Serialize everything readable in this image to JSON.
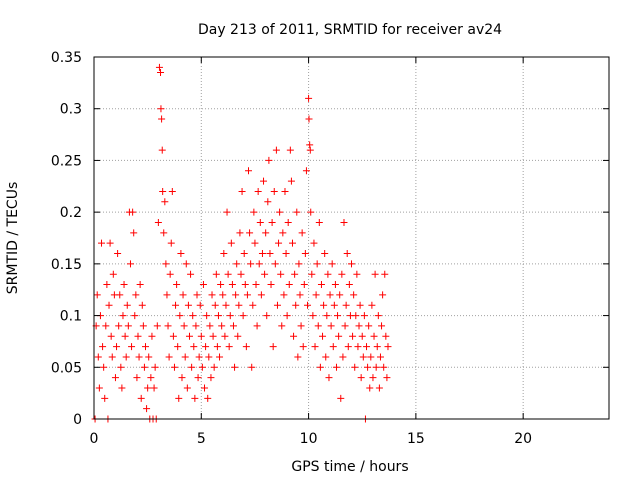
{
  "chart_data": {
    "type": "scatter",
    "title": "Day 213 of 2011, SRMTID for receiver av24",
    "xlabel": "GPS time / hours",
    "ylabel": "SRMTID / TECUs",
    "xlim": [
      0,
      24
    ],
    "ylim": [
      0,
      0.35
    ],
    "xticks": [
      0,
      5,
      10,
      15,
      20
    ],
    "yticks": [
      0,
      0.05,
      0.1,
      0.15,
      0.2,
      0.25,
      0.3,
      0.35
    ],
    "xtick_labels": [
      "0",
      "5",
      "10",
      "15",
      "20"
    ],
    "ytick_labels": [
      "0",
      "0.05",
      "0.1",
      "0.15",
      "0.2",
      "0.25",
      "0.3",
      "0.35"
    ],
    "grid": true,
    "marker": "+",
    "color": "#ff0000",
    "series": [
      {
        "name": "SRMTID av24",
        "points": [
          [
            0.05,
            0.0
          ],
          [
            0.1,
            0.09
          ],
          [
            0.15,
            0.12
          ],
          [
            0.2,
            0.06
          ],
          [
            0.25,
            0.03
          ],
          [
            0.3,
            0.1
          ],
          [
            0.35,
            0.17
          ],
          [
            0.4,
            0.07
          ],
          [
            0.45,
            0.05
          ],
          [
            0.5,
            0.02
          ],
          [
            0.55,
            0.09
          ],
          [
            0.6,
            0.13
          ],
          [
            0.65,
            0.0
          ],
          [
            0.7,
            0.11
          ],
          [
            0.75,
            0.17
          ],
          [
            0.8,
            0.08
          ],
          [
            0.85,
            0.06
          ],
          [
            0.9,
            0.14
          ],
          [
            0.95,
            0.12
          ],
          [
            1.0,
            0.04
          ],
          [
            1.05,
            0.07
          ],
          [
            1.1,
            0.16
          ],
          [
            1.15,
            0.09
          ],
          [
            1.2,
            0.12
          ],
          [
            1.25,
            0.05
          ],
          [
            1.3,
            0.03
          ],
          [
            1.35,
            0.1
          ],
          [
            1.4,
            0.13
          ],
          [
            1.45,
            0.08
          ],
          [
            1.5,
            0.06
          ],
          [
            1.55,
            0.11
          ],
          [
            1.6,
            0.09
          ],
          [
            1.65,
            0.2
          ],
          [
            1.7,
            0.15
          ],
          [
            1.75,
            0.07
          ],
          [
            1.8,
            0.2
          ],
          [
            1.85,
            0.18
          ],
          [
            1.9,
            0.1
          ],
          [
            1.95,
            0.12
          ],
          [
            2.0,
            0.04
          ],
          [
            2.05,
            0.08
          ],
          [
            2.1,
            0.06
          ],
          [
            2.15,
            0.13
          ],
          [
            2.2,
            0.02
          ],
          [
            2.25,
            0.11
          ],
          [
            2.3,
            0.09
          ],
          [
            2.35,
            0.05
          ],
          [
            2.4,
            0.07
          ],
          [
            2.45,
            0.01
          ],
          [
            2.5,
            0.03
          ],
          [
            2.55,
            0.06
          ],
          [
            2.6,
            0.0
          ],
          [
            2.65,
            0.04
          ],
          [
            2.7,
            0.08
          ],
          [
            2.75,
            0.0
          ],
          [
            2.8,
            0.03
          ],
          [
            2.85,
            0.05
          ],
          [
            2.9,
            0.0
          ],
          [
            2.95,
            0.09
          ],
          [
            3.0,
            0.19
          ],
          [
            3.05,
            0.34
          ],
          [
            3.1,
            0.335
          ],
          [
            3.12,
            0.3
          ],
          [
            3.15,
            0.29
          ],
          [
            3.18,
            0.26
          ],
          [
            3.2,
            0.22
          ],
          [
            3.25,
            0.18
          ],
          [
            3.3,
            0.21
          ],
          [
            3.35,
            0.15
          ],
          [
            3.4,
            0.12
          ],
          [
            3.45,
            0.09
          ],
          [
            3.5,
            0.06
          ],
          [
            3.55,
            0.14
          ],
          [
            3.6,
            0.17
          ],
          [
            3.65,
            0.22
          ],
          [
            3.7,
            0.08
          ],
          [
            3.75,
            0.05
          ],
          [
            3.8,
            0.11
          ],
          [
            3.85,
            0.13
          ],
          [
            3.9,
            0.07
          ],
          [
            3.95,
            0.02
          ],
          [
            4.0,
            0.1
          ],
          [
            4.05,
            0.16
          ],
          [
            4.1,
            0.04
          ],
          [
            4.15,
            0.12
          ],
          [
            4.2,
            0.09
          ],
          [
            4.25,
            0.06
          ],
          [
            4.3,
            0.15
          ],
          [
            4.35,
            0.03
          ],
          [
            4.4,
            0.11
          ],
          [
            4.45,
            0.08
          ],
          [
            4.5,
            0.14
          ],
          [
            4.55,
            0.05
          ],
          [
            4.6,
            0.1
          ],
          [
            4.65,
            0.07
          ],
          [
            4.7,
            0.02
          ],
          [
            4.75,
            0.09
          ],
          [
            4.8,
            0.12
          ],
          [
            4.85,
            0.04
          ],
          [
            4.9,
            0.06
          ],
          [
            4.95,
            0.11
          ],
          [
            5.0,
            0.08
          ],
          [
            5.05,
            0.05
          ],
          [
            5.1,
            0.13
          ],
          [
            5.15,
            0.03
          ],
          [
            5.2,
            0.07
          ],
          [
            5.25,
            0.1
          ],
          [
            5.3,
            0.02
          ],
          [
            5.35,
            0.06
          ],
          [
            5.4,
            0.09
          ],
          [
            5.45,
            0.04
          ],
          [
            5.5,
            0.12
          ],
          [
            5.55,
            0.08
          ],
          [
            5.6,
            0.05
          ],
          [
            5.65,
            0.11
          ],
          [
            5.7,
            0.14
          ],
          [
            5.75,
            0.07
          ],
          [
            5.8,
            0.1
          ],
          [
            5.85,
            0.06
          ],
          [
            5.9,
            0.13
          ],
          [
            5.95,
            0.09
          ],
          [
            6.0,
            0.12
          ],
          [
            6.05,
            0.16
          ],
          [
            6.1,
            0.08
          ],
          [
            6.15,
            0.11
          ],
          [
            6.2,
            0.2
          ],
          [
            6.25,
            0.14
          ],
          [
            6.3,
            0.07
          ],
          [
            6.35,
            0.1
          ],
          [
            6.4,
            0.17
          ],
          [
            6.45,
            0.13
          ],
          [
            6.5,
            0.09
          ],
          [
            6.55,
            0.05
          ],
          [
            6.6,
            0.12
          ],
          [
            6.65,
            0.15
          ],
          [
            6.7,
            0.08
          ],
          [
            6.75,
            0.11
          ],
          [
            6.8,
            0.18
          ],
          [
            6.85,
            0.14
          ],
          [
            6.9,
            0.22
          ],
          [
            6.95,
            0.1
          ],
          [
            7.0,
            0.16
          ],
          [
            7.05,
            0.13
          ],
          [
            7.1,
            0.07
          ],
          [
            7.15,
            0.12
          ],
          [
            7.2,
            0.24
          ],
          [
            7.25,
            0.18
          ],
          [
            7.3,
            0.15
          ],
          [
            7.35,
            0.05
          ],
          [
            7.4,
            0.11
          ],
          [
            7.45,
            0.2
          ],
          [
            7.5,
            0.17
          ],
          [
            7.55,
            0.13
          ],
          [
            7.6,
            0.09
          ],
          [
            7.65,
            0.22
          ],
          [
            7.7,
            0.15
          ],
          [
            7.75,
            0.19
          ],
          [
            7.8,
            0.12
          ],
          [
            7.85,
            0.16
          ],
          [
            7.9,
            0.23
          ],
          [
            7.95,
            0.14
          ],
          [
            8.0,
            0.18
          ],
          [
            8.05,
            0.1
          ],
          [
            8.1,
            0.21
          ],
          [
            8.15,
            0.25
          ],
          [
            8.2,
            0.16
          ],
          [
            8.25,
            0.13
          ],
          [
            8.3,
            0.19
          ],
          [
            8.35,
            0.07
          ],
          [
            8.4,
            0.22
          ],
          [
            8.45,
            0.15
          ],
          [
            8.5,
            0.26
          ],
          [
            8.55,
            0.11
          ],
          [
            8.6,
            0.17
          ],
          [
            8.65,
            0.2
          ],
          [
            8.7,
            0.14
          ],
          [
            8.75,
            0.09
          ],
          [
            8.8,
            0.18
          ],
          [
            8.85,
            0.12
          ],
          [
            8.9,
            0.22
          ],
          [
            8.95,
            0.16
          ],
          [
            9.0,
            0.1
          ],
          [
            9.05,
            0.19
          ],
          [
            9.1,
            0.13
          ],
          [
            9.15,
            0.26
          ],
          [
            9.2,
            0.23
          ],
          [
            9.25,
            0.17
          ],
          [
            9.3,
            0.08
          ],
          [
            9.35,
            0.14
          ],
          [
            9.4,
            0.11
          ],
          [
            9.45,
            0.2
          ],
          [
            9.5,
            0.06
          ],
          [
            9.55,
            0.15
          ],
          [
            9.6,
            0.12
          ],
          [
            9.65,
            0.09
          ],
          [
            9.7,
            0.18
          ],
          [
            9.75,
            0.07
          ],
          [
            9.8,
            0.13
          ],
          [
            9.85,
            0.16
          ],
          [
            9.9,
            0.24
          ],
          [
            9.95,
            0.11
          ],
          [
            10.0,
            0.31
          ],
          [
            10.02,
            0.29
          ],
          [
            10.05,
            0.265
          ],
          [
            10.08,
            0.26
          ],
          [
            10.1,
            0.2
          ],
          [
            10.15,
            0.14
          ],
          [
            10.2,
            0.1
          ],
          [
            10.25,
            0.17
          ],
          [
            10.3,
            0.07
          ],
          [
            10.35,
            0.12
          ],
          [
            10.4,
            0.15
          ],
          [
            10.45,
            0.09
          ],
          [
            10.5,
            0.19
          ],
          [
            10.55,
            0.05
          ],
          [
            10.6,
            0.13
          ],
          [
            10.65,
            0.08
          ],
          [
            10.7,
            0.11
          ],
          [
            10.75,
            0.16
          ],
          [
            10.8,
            0.06
          ],
          [
            10.85,
            0.1
          ],
          [
            10.9,
            0.14
          ],
          [
            10.95,
            0.04
          ],
          [
            11.0,
            0.12
          ],
          [
            11.05,
            0.09
          ],
          [
            11.1,
            0.15
          ],
          [
            11.15,
            0.07
          ],
          [
            11.2,
            0.11
          ],
          [
            11.25,
            0.13
          ],
          [
            11.3,
            0.05
          ],
          [
            11.35,
            0.1
          ],
          [
            11.4,
            0.08
          ],
          [
            11.45,
            0.12
          ],
          [
            11.5,
            0.02
          ],
          [
            11.55,
            0.14
          ],
          [
            11.6,
            0.06
          ],
          [
            11.65,
            0.19
          ],
          [
            11.7,
            0.09
          ],
          [
            11.75,
            0.11
          ],
          [
            11.8,
            0.16
          ],
          [
            11.85,
            0.07
          ],
          [
            11.9,
            0.13
          ],
          [
            11.95,
            0.1
          ],
          [
            12.0,
            0.15
          ],
          [
            12.05,
            0.08
          ],
          [
            12.1,
            0.12
          ],
          [
            12.15,
            0.05
          ],
          [
            12.2,
            0.1
          ],
          [
            12.25,
            0.14
          ],
          [
            12.3,
            0.07
          ],
          [
            12.35,
            0.09
          ],
          [
            12.4,
            0.11
          ],
          [
            12.45,
            0.04
          ],
          [
            12.5,
            0.08
          ],
          [
            12.55,
            0.06
          ],
          [
            12.6,
            0.1
          ],
          [
            12.65,
            0.0
          ],
          [
            12.7,
            0.07
          ],
          [
            12.75,
            0.05
          ],
          [
            12.8,
            0.09
          ],
          [
            12.85,
            0.03
          ],
          [
            12.9,
            0.06
          ],
          [
            12.95,
            0.11
          ],
          [
            13.0,
            0.04
          ],
          [
            13.05,
            0.08
          ],
          [
            13.1,
            0.14
          ],
          [
            13.15,
            0.05
          ],
          [
            13.2,
            0.07
          ],
          [
            13.25,
            0.1
          ],
          [
            13.3,
            0.03
          ],
          [
            13.35,
            0.06
          ],
          [
            13.4,
            0.09
          ],
          [
            13.45,
            0.12
          ],
          [
            13.5,
            0.05
          ],
          [
            13.55,
            0.14
          ],
          [
            13.6,
            0.08
          ],
          [
            13.65,
            0.04
          ],
          [
            13.7,
            0.07
          ]
        ]
      }
    ]
  }
}
